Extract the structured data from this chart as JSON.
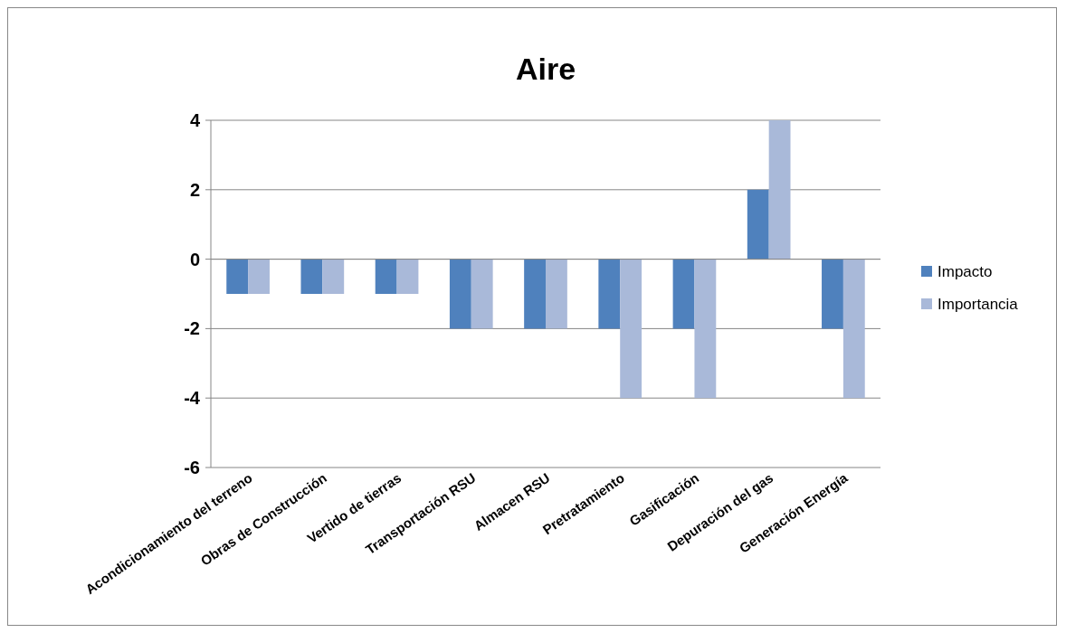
{
  "chart_data": {
    "type": "bar",
    "title": "Aire",
    "categories": [
      "Acondicionamiento del terreno",
      "Obras de Construcción",
      "Vertido de tierras",
      "Transportación RSU",
      "Almacen RSU",
      "Pretratamiento",
      "Gasificación",
      "Depuración del gas",
      "Generación Energía"
    ],
    "series": [
      {
        "name": "Impacto",
        "color": "#4f81bd",
        "values": [
          -1,
          -1,
          -1,
          -2,
          -2,
          -2,
          -2,
          2,
          -2
        ]
      },
      {
        "name": "Importancia",
        "color": "#a9b9d9",
        "values": [
          -1,
          -1,
          -1,
          -2,
          -2,
          -4,
          -4,
          4,
          -4
        ]
      }
    ],
    "ylim": [
      -6,
      4
    ],
    "yticks": [
      -6,
      -4,
      -2,
      0,
      2,
      4
    ],
    "grid": "y",
    "legend": "right"
  }
}
